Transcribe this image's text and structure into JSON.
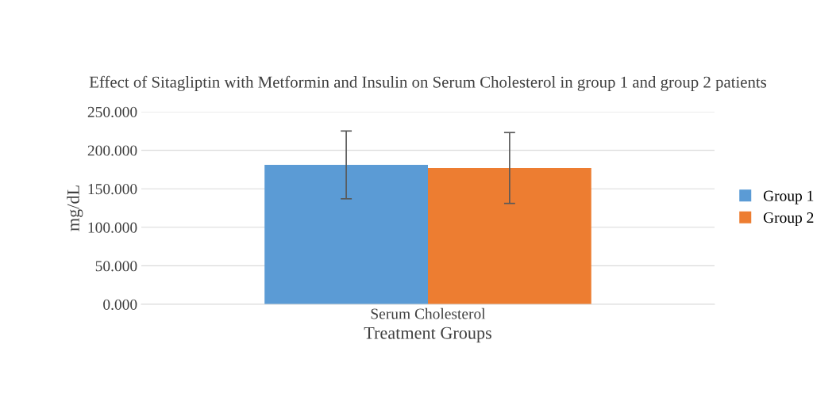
{
  "chart_data": {
    "type": "bar",
    "title": "Effect of Sitagliptin with Metformin and Insulin on Serum Cholesterol in group 1 and group 2 patients",
    "categories": [
      "Serum Cholesterol"
    ],
    "series": [
      {
        "name": "Group 1",
        "color": "#5b9bd5",
        "values": [
          181
        ],
        "errors": [
          44
        ]
      },
      {
        "name": "Group 2",
        "color": "#ed7d31",
        "values": [
          177
        ],
        "errors": [
          46
        ]
      }
    ],
    "xlabel": "Treatment Groups",
    "ylabel": "mg/dL",
    "ylim": [
      0,
      250
    ],
    "yticks": [
      {
        "value": 0,
        "label": "0.000"
      },
      {
        "value": 50,
        "label": "50.000"
      },
      {
        "value": 100,
        "label": "100.000"
      },
      {
        "value": 150,
        "label": "150.000"
      },
      {
        "value": 200,
        "label": "200.000"
      },
      {
        "value": 250,
        "label": "250.000"
      }
    ],
    "grid": "y",
    "legend": "right"
  }
}
